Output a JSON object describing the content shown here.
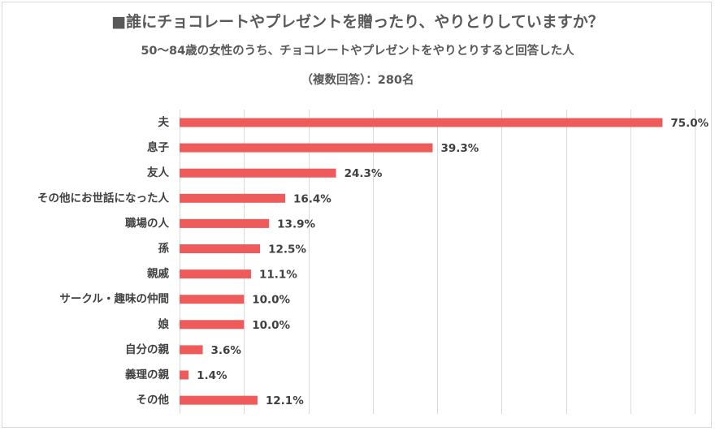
{
  "chart_data": {
    "type": "bar",
    "orientation": "horizontal",
    "title": "■誰にチョコレートやプレゼントを贈ったり、やりとりしていますか？",
    "subtitle": "50～84歳の女性のうち、チョコレートやプレゼントをやりとりすると回答した人",
    "note": "（複数回答）：280名",
    "categories": [
      "夫",
      "息子",
      "友人",
      "その他にお世話になった人",
      "職場の人",
      "孫",
      "親戚",
      "サークル・趣味の仲間",
      "娘",
      "自分の親",
      "義理の親",
      "その他"
    ],
    "values": [
      75.0,
      39.3,
      24.3,
      16.4,
      13.9,
      12.5,
      11.1,
      10.0,
      10.0,
      3.6,
      1.4,
      12.1
    ],
    "data_labels": [
      "75.0%",
      "39.3%",
      "24.3%",
      "16.4%",
      "13.9%",
      "12.5%",
      "11.1%",
      "10.0%",
      "10.0%",
      "3.6%",
      "1.4%",
      "12.1%"
    ],
    "unit": "%",
    "xlim": [
      0,
      80
    ],
    "grid": true,
    "legend": "none",
    "bar_color": "#ef5b5b",
    "grid_color": "#d9d9d9",
    "text_color": "#404040"
  }
}
